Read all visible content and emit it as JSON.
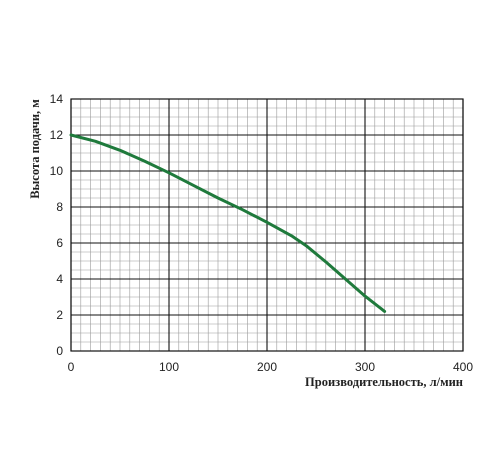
{
  "chart_data": {
    "type": "line",
    "title": "",
    "xlabel": "Производительность, л/мин",
    "ylabel": "Высота подачи, м",
    "xlim": [
      0,
      400
    ],
    "ylim": [
      0,
      14
    ],
    "x_ticks": [
      "0",
      "100",
      "200",
      "300",
      "400"
    ],
    "y_ticks": [
      "0",
      "2",
      "4",
      "6",
      "8",
      "10",
      "12",
      "14"
    ],
    "grid": true,
    "minor_grid": true,
    "legend": "none",
    "line_color": "#1f7a3c",
    "series": [
      {
        "x": [
          0,
          25,
          50,
          75,
          100,
          125,
          150,
          175,
          200,
          225,
          240,
          260,
          280,
          300,
          320
        ],
        "y": [
          12.0,
          11.65,
          11.15,
          10.55,
          9.9,
          9.2,
          8.5,
          7.85,
          7.15,
          6.4,
          5.85,
          4.95,
          4.0,
          3.05,
          2.2
        ]
      }
    ]
  }
}
